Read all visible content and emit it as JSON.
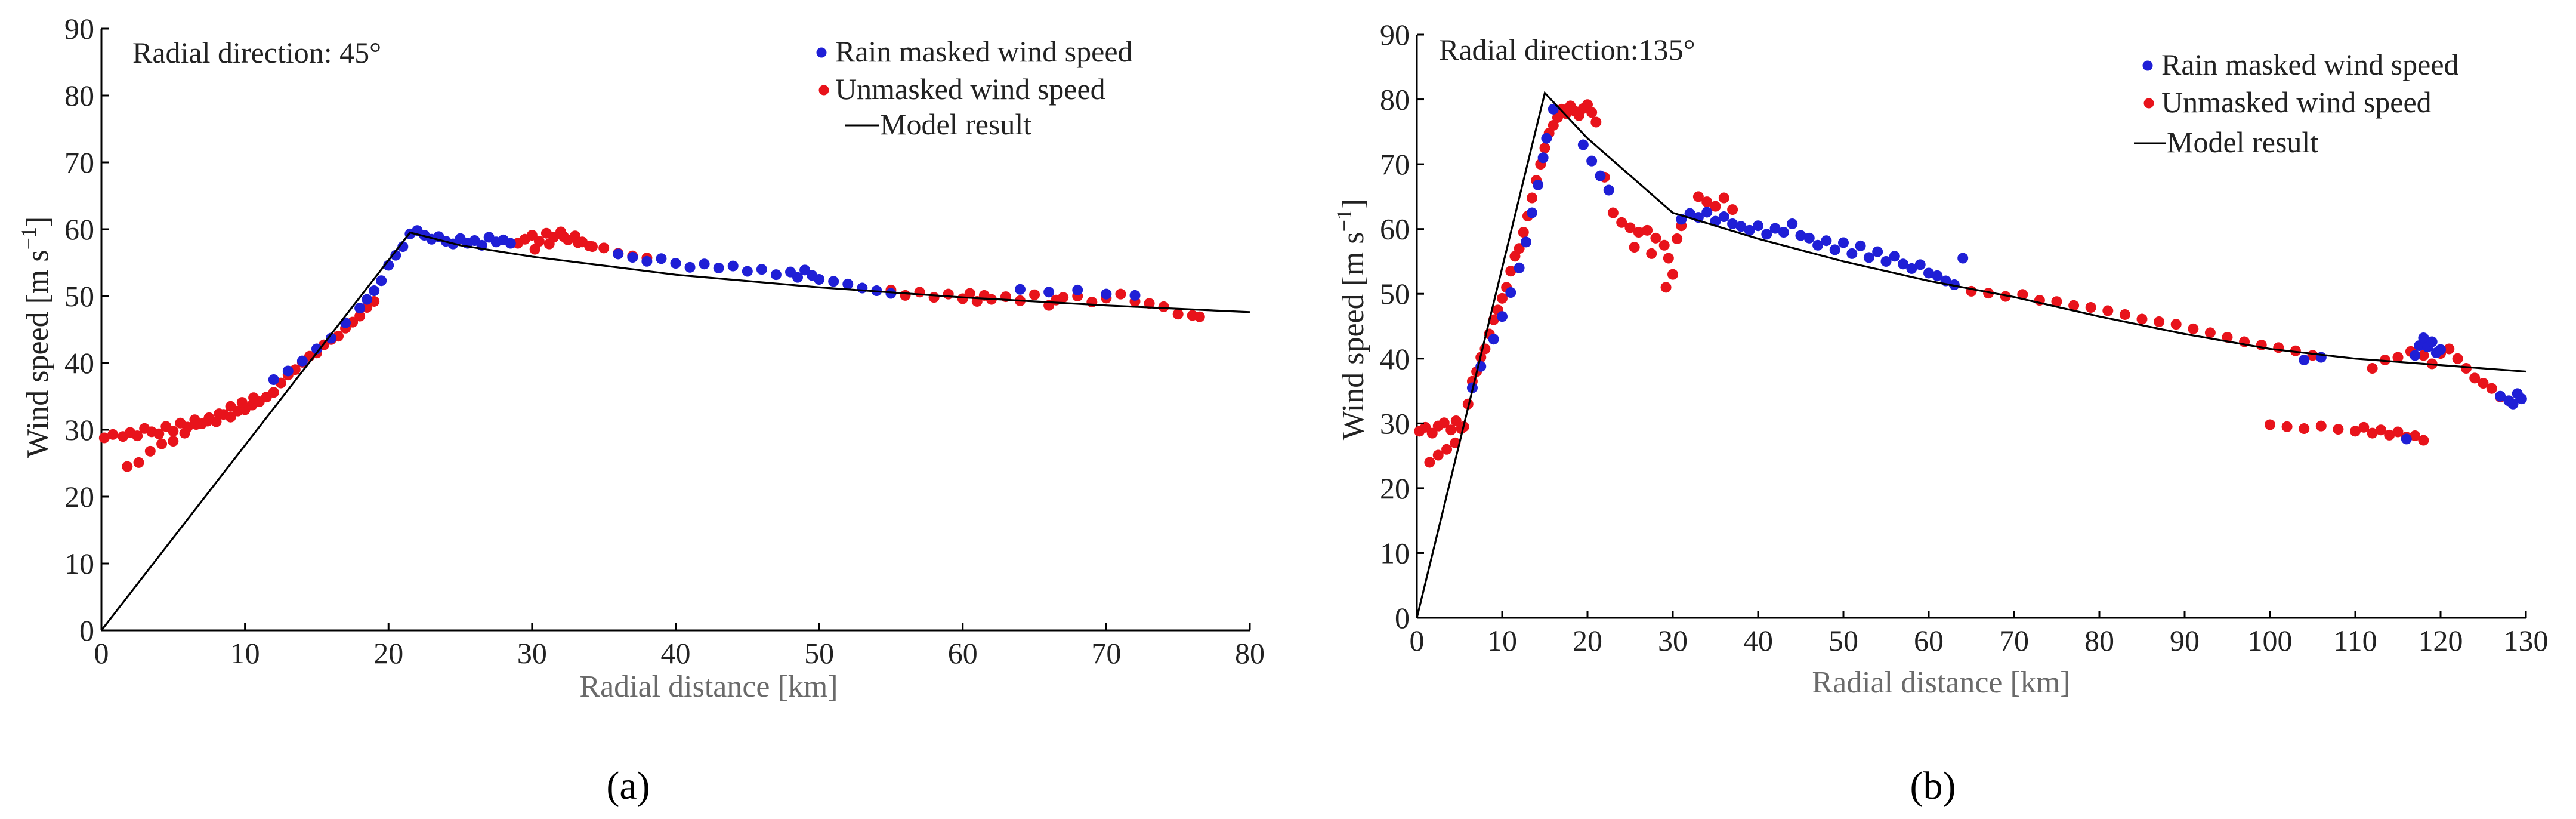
{
  "figure": {
    "panel_a_label": "(a)",
    "panel_b_label": "(b)"
  },
  "chart_data": [
    {
      "type": "scatter",
      "id": "a",
      "annotation": "Radial direction: 45°",
      "xlabel": "Radial distance [km]",
      "ylabel_main": "Wind speed [m s",
      "ylabel_sup": "−1",
      "ylabel_end": "]",
      "xlim": [
        0,
        80
      ],
      "ylim": [
        0,
        90
      ],
      "xticks": [
        0,
        10,
        20,
        30,
        40,
        50,
        60,
        70,
        80
      ],
      "yticks": [
        0,
        10,
        20,
        30,
        40,
        50,
        60,
        70,
        80,
        90
      ],
      "legend": [
        "Rain masked wind speed",
        "Unmasked wind speed",
        "Model result"
      ],
      "legend_position": "top-right",
      "colors": {
        "masked": "#1f1fd6",
        "unmasked": "#e8131b",
        "model": "#000000"
      },
      "model": {
        "x": [
          0,
          21.5,
          25,
          30,
          40,
          50,
          60,
          70,
          80
        ],
        "y": [
          0,
          59.5,
          57.6,
          55.9,
          53.2,
          51.3,
          49.8,
          48.6,
          47.6
        ]
      },
      "series": [
        {
          "name": "Unmasked wind speed",
          "x": [
            0.2,
            0.8,
            1.5,
            2.0,
            2.5,
            3.0,
            3.5,
            4.0,
            4.5,
            5.0,
            5.5,
            6.0,
            6.5,
            7.0,
            7.5,
            8.0,
            8.5,
            9.0,
            9.5,
            10.0,
            10.5,
            11.0,
            11.5,
            12.0,
            1.8,
            2.6,
            3.4,
            4.2,
            5.0,
            5.8,
            6.6,
            7.4,
            8.2,
            9.0,
            9.8,
            10.6,
            12.5,
            13.0,
            13.5,
            14.0,
            14.5,
            15.0,
            15.5,
            16.0,
            16.5,
            17.0,
            17.5,
            18.0,
            18.5,
            19.0,
            29.0,
            29.5,
            30.0,
            30.5,
            31.0,
            31.5,
            32.0,
            32.5,
            33.0,
            33.5,
            34.0,
            35.0,
            36.0,
            37.0,
            38.0,
            30.2,
            31.2,
            32.2,
            33.2,
            34.2,
            55.0,
            56.0,
            57.0,
            58.0,
            59.0,
            60.0,
            60.5,
            61.0,
            61.5,
            62.0,
            63.0,
            64.0,
            65.0,
            66.0,
            66.5,
            67.0,
            68.0,
            69.0,
            70.0,
            71.0,
            72.0,
            73.0,
            74.0,
            75.0,
            76.0,
            76.5
          ],
          "y": [
            28.8,
            29.3,
            29.0,
            29.6,
            29.1,
            30.2,
            29.7,
            29.4,
            30.5,
            29.8,
            31.0,
            30.4,
            31.5,
            30.9,
            31.8,
            31.2,
            32.3,
            31.9,
            32.8,
            33.0,
            33.7,
            34.2,
            34.9,
            35.6,
            24.5,
            25.1,
            26.8,
            27.9,
            28.3,
            29.5,
            30.8,
            31.3,
            32.4,
            33.5,
            34.1,
            34.8,
            37.0,
            38.2,
            39.0,
            40.1,
            41.0,
            41.5,
            42.7,
            43.5,
            44.0,
            45.2,
            46.1,
            47.0,
            48.3,
            49.2,
            57.9,
            58.5,
            59.1,
            58.2,
            59.4,
            58.8,
            59.6,
            58.4,
            59.0,
            58.1,
            57.5,
            57.2,
            56.4,
            56.0,
            55.7,
            57.0,
            57.8,
            58.9,
            58.0,
            57.4,
            50.9,
            50.1,
            50.6,
            49.8,
            50.3,
            49.6,
            50.4,
            49.2,
            50.1,
            49.5,
            49.9,
            49.3,
            50.2,
            48.6,
            49.4,
            49.8,
            50.0,
            49.1,
            49.7,
            50.3,
            49.2,
            48.9,
            48.4,
            47.3,
            47.1,
            46.9
          ]
        },
        {
          "name": "Rain masked wind speed",
          "x": [
            12.0,
            13.0,
            14.0,
            15.0,
            16.0,
            17.0,
            18.0,
            18.5,
            19.0,
            19.5,
            20.0,
            20.5,
            21.0,
            21.5,
            22.0,
            22.5,
            23.0,
            23.5,
            24.0,
            24.5,
            25.0,
            25.5,
            26.0,
            26.5,
            27.0,
            27.5,
            28.0,
            28.5,
            36.0,
            37.0,
            38.0,
            39.0,
            40.0,
            41.0,
            42.0,
            43.0,
            44.0,
            45.0,
            46.0,
            47.0,
            48.0,
            48.5,
            49.0,
            49.5,
            50.0,
            51.0,
            52.0,
            53.0,
            54.0,
            55.0,
            64.0,
            66.0,
            68.0,
            70.0,
            72.0
          ],
          "y": [
            37.5,
            38.8,
            40.3,
            42.1,
            43.7,
            46.0,
            48.2,
            49.5,
            50.8,
            52.3,
            54.6,
            56.1,
            57.4,
            59.3,
            59.8,
            59.1,
            58.5,
            58.9,
            58.2,
            57.8,
            58.6,
            57.9,
            58.3,
            57.6,
            58.8,
            58.1,
            58.4,
            57.9,
            56.3,
            55.8,
            55.2,
            55.6,
            54.9,
            54.3,
            54.8,
            54.2,
            54.5,
            53.7,
            54.0,
            53.2,
            53.6,
            52.8,
            53.9,
            53.1,
            52.5,
            52.2,
            51.8,
            51.2,
            50.8,
            50.4,
            51.0,
            50.6,
            50.9,
            50.3,
            50.1
          ]
        }
      ]
    },
    {
      "type": "scatter",
      "id": "b",
      "annotation": "Radial direction:135°",
      "xlabel": "Radial distance [km]",
      "ylabel_main": "Wind speed [m s",
      "ylabel_sup": "−1",
      "ylabel_end": "]",
      "xlim": [
        0,
        130
      ],
      "ylim": [
        0,
        90
      ],
      "xticks": [
        0,
        10,
        20,
        30,
        40,
        50,
        60,
        70,
        80,
        90,
        100,
        110,
        120,
        130
      ],
      "yticks": [
        0,
        10,
        20,
        30,
        40,
        50,
        60,
        70,
        80,
        90
      ],
      "legend": [
        "Rain masked wind speed",
        "Unmasked wind speed",
        "Model result"
      ],
      "legend_position": "top-right",
      "colors": {
        "masked": "#1f1fd6",
        "unmasked": "#e8131b",
        "model": "#000000"
      },
      "model": {
        "x": [
          0,
          15,
          20,
          30,
          40,
          50,
          60,
          70,
          80,
          90,
          100,
          110,
          120,
          130
        ],
        "y": [
          0,
          81,
          74,
          62.5,
          58.5,
          55,
          52,
          49.5,
          46.5,
          43.8,
          41.5,
          40,
          39,
          38
        ]
      },
      "series": [
        {
          "name": "Unmasked wind speed",
          "x": [
            0.3,
            1.0,
            1.8,
            2.5,
            3.2,
            4.0,
            4.6,
            5.2,
            1.5,
            2.5,
            3.5,
            4.5,
            5.5,
            6.0,
            6.5,
            7.0,
            7.5,
            8.0,
            8.5,
            9.0,
            9.5,
            10.0,
            10.5,
            11.0,
            11.5,
            12.0,
            12.5,
            13.0,
            13.5,
            14.0,
            14.5,
            15.0,
            15.5,
            16.0,
            16.5,
            17.0,
            17.5,
            18.0,
            18.5,
            19.0,
            19.5,
            20.0,
            20.5,
            21.0,
            22.0,
            23.0,
            24.0,
            25.0,
            26.0,
            27.0,
            28.0,
            29.0,
            29.5,
            30.0,
            30.5,
            31.0,
            25.5,
            27.5,
            29.2,
            33.0,
            34.0,
            35.0,
            36.0,
            37.0,
            65.0,
            67.0,
            69.0,
            71.0,
            73.0,
            75.0,
            77.0,
            79.0,
            81.0,
            83.0,
            85.0,
            87.0,
            89.0,
            91.0,
            93.0,
            95.0,
            97.0,
            99.0,
            101.0,
            103.0,
            105.0,
            100.0,
            102.0,
            104.0,
            106.0,
            108.0,
            110.0,
            111.0,
            112.0,
            113.0,
            114.0,
            115.0,
            116.0,
            117.0,
            118.0,
            112.0,
            113.5,
            115.0,
            116.5,
            118.0,
            119.0,
            120.0,
            121.0,
            122.0,
            123.0,
            124.0,
            125.0,
            126.0,
            127.0,
            128.0
          ],
          "y": [
            28.8,
            29.4,
            28.5,
            29.6,
            30.1,
            29.0,
            30.4,
            29.2,
            24.0,
            25.1,
            26.0,
            27.0,
            29.5,
            33.0,
            36.5,
            38.0,
            40.2,
            41.5,
            43.8,
            46.0,
            47.5,
            49.3,
            51.0,
            53.5,
            55.8,
            57.0,
            59.5,
            62.0,
            64.8,
            67.5,
            70.0,
            72.5,
            74.8,
            76.0,
            77.2,
            78.5,
            77.8,
            79.0,
            78.2,
            77.5,
            78.6,
            79.2,
            78.0,
            76.5,
            68.0,
            62.5,
            61.0,
            60.2,
            59.5,
            59.8,
            58.6,
            57.5,
            55.5,
            53.0,
            58.5,
            60.5,
            57.2,
            56.2,
            51.0,
            65.0,
            64.2,
            63.5,
            64.8,
            63.0,
            50.4,
            50.1,
            49.6,
            49.9,
            49.0,
            48.8,
            48.2,
            47.9,
            47.4,
            46.8,
            46.1,
            45.7,
            45.3,
            44.6,
            44.0,
            43.3,
            42.6,
            42.1,
            41.7,
            41.2,
            40.5,
            29.8,
            29.5,
            29.2,
            29.6,
            29.1,
            28.8,
            29.4,
            28.5,
            29.0,
            28.2,
            28.7,
            27.9,
            28.1,
            27.4,
            38.5,
            39.8,
            40.2,
            41.1,
            40.5,
            39.2,
            40.8,
            41.5,
            40.0,
            38.5,
            37.0,
            36.2,
            35.4,
            34.1,
            33.5
          ]
        },
        {
          "name": "Rain masked wind speed",
          "x": [
            6.5,
            7.5,
            9.0,
            10.0,
            11.0,
            12.0,
            12.8,
            13.5,
            14.2,
            14.8,
            15.2,
            16.0,
            19.5,
            20.5,
            21.5,
            22.5,
            31.0,
            32.0,
            33.0,
            34.0,
            35.0,
            36.0,
            37.0,
            38.0,
            39.0,
            40.0,
            41.0,
            42.0,
            43.0,
            44.0,
            45.0,
            46.0,
            47.0,
            48.0,
            49.0,
            50.0,
            51.0,
            52.0,
            53.0,
            54.0,
            55.0,
            56.0,
            57.0,
            58.0,
            59.0,
            60.0,
            61.0,
            62.0,
            63.0,
            64.0,
            104.0,
            106.0,
            116.0,
            117.0,
            117.5,
            118.0,
            118.5,
            119.0,
            119.5,
            120.0,
            127.0,
            128.0,
            128.5,
            129.0,
            129.5
          ],
          "y": [
            35.5,
            38.8,
            43.0,
            46.5,
            50.2,
            54.0,
            58.0,
            62.5,
            66.8,
            71.0,
            74.0,
            78.5,
            73.0,
            70.5,
            68.2,
            66.0,
            61.5,
            62.4,
            61.8,
            62.6,
            61.2,
            61.9,
            60.8,
            60.4,
            59.8,
            60.5,
            59.2,
            60.1,
            59.5,
            60.8,
            59.0,
            58.6,
            57.5,
            58.2,
            56.8,
            57.9,
            56.2,
            57.4,
            55.6,
            56.5,
            55.0,
            55.8,
            54.6,
            53.9,
            54.5,
            53.2,
            52.8,
            52.0,
            51.4,
            55.5,
            39.8,
            40.2,
            27.6,
            40.5,
            42.0,
            43.2,
            41.8,
            42.6,
            40.9,
            41.4,
            34.2,
            33.5,
            33.0,
            34.6,
            33.8
          ]
        }
      ]
    }
  ]
}
